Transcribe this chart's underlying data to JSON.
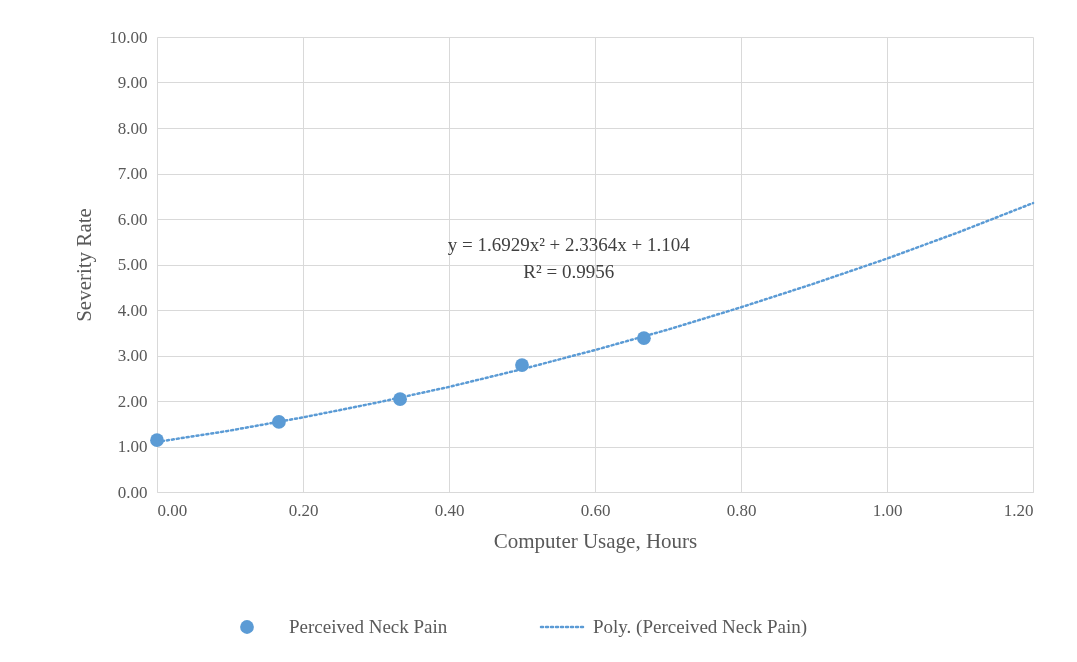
{
  "chart_data": {
    "type": "scatter",
    "xlabel": "Computer Usage, Hours",
    "ylabel": "Severity Rate",
    "annotations": [
      "y = 1.6929x² + 2.3364x + 1.104",
      "R² = 0.9956"
    ],
    "x": [
      0,
      0.167,
      0.333,
      0.5,
      0.667
    ],
    "series": [
      {
        "name": "Perceived Neck Pain",
        "color": "#5b9bd5",
        "marker": "circle",
        "values": [
          1.14,
          1.54,
          2.04,
          2.79,
          3.38
        ]
      },
      {
        "name": "Poly. (Perceived Neck Pain)",
        "type": "line",
        "color": "#5b9bd5",
        "line_style": "dotted",
        "marker": "none",
        "x": [
          0,
          0.1,
          0.2,
          0.3,
          0.4,
          0.5,
          0.6,
          0.7,
          0.8,
          0.9,
          1,
          1.1,
          1.2
        ],
        "values": [
          1.1,
          1.35,
          1.64,
          1.96,
          2.31,
          2.7,
          3.12,
          3.57,
          4.06,
          4.58,
          5.13,
          5.72,
          6.35
        ]
      }
    ],
    "xlim": [
      0,
      1.2
    ],
    "xticks": [
      {
        "value": 0,
        "label": "0.00"
      },
      {
        "value": 0.2,
        "label": "0.20"
      },
      {
        "value": 0.4,
        "label": "0.40"
      },
      {
        "value": 0.6,
        "label": "0.60"
      },
      {
        "value": 0.8,
        "label": "0.80"
      },
      {
        "value": 1,
        "label": "1.00"
      },
      {
        "value": 1.2,
        "label": "1.20"
      }
    ],
    "ylim": [
      0,
      10
    ],
    "yticks": [
      {
        "value": 0,
        "label": "0.00"
      },
      {
        "value": 1,
        "label": "1.00"
      },
      {
        "value": 2,
        "label": "2.00"
      },
      {
        "value": 3,
        "label": "3.00"
      },
      {
        "value": 4,
        "label": "4.00"
      },
      {
        "value": 5,
        "label": "5.00"
      },
      {
        "value": 6,
        "label": "6.00"
      },
      {
        "value": 7,
        "label": "7.00"
      },
      {
        "value": 8,
        "label": "8.00"
      },
      {
        "value": 9,
        "label": "9.00"
      },
      {
        "value": 10,
        "label": "10.00"
      }
    ],
    "grid": true,
    "legend": "bottom"
  }
}
